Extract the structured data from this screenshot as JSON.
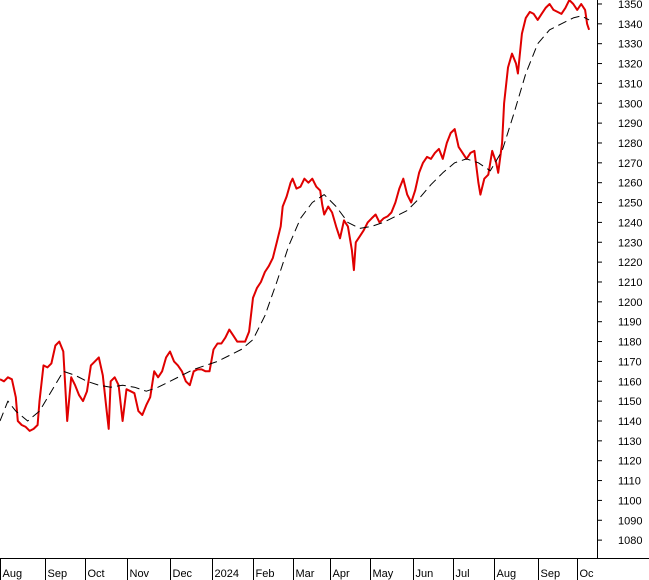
{
  "chart_data": {
    "type": "line",
    "title": "",
    "xlabel": "",
    "ylabel": "",
    "ylim": [
      1071,
      1352
    ],
    "y_axis_position": "right",
    "grid": false,
    "legend": "none",
    "y_ticks": [
      1080,
      1090,
      1100,
      1110,
      1120,
      1130,
      1140,
      1150,
      1160,
      1170,
      1180,
      1190,
      1200,
      1210,
      1220,
      1230,
      1240,
      1250,
      1260,
      1270,
      1280,
      1290,
      1300,
      1310,
      1320,
      1330,
      1340,
      1350
    ],
    "x_tick_labels": [
      "Aug",
      "Sep",
      "Oct",
      "Nov",
      "Dec",
      "2024",
      "Feb",
      "Mar",
      "Apr",
      "May",
      "Jun",
      "Jul",
      "Aug",
      "Sep",
      "Oc"
    ],
    "x_tick_index": [
      0,
      23,
      43,
      64,
      86,
      107,
      128,
      148,
      167,
      187,
      209,
      229,
      250,
      272,
      292
    ],
    "x_range": [
      0,
      302
    ],
    "series": [
      {
        "color": "#e00000",
        "style": "solid",
        "points": [
          [
            0,
            1161
          ],
          [
            2,
            1160
          ],
          [
            4,
            1162
          ],
          [
            6,
            1161
          ],
          [
            8,
            1152
          ],
          [
            9,
            1140
          ],
          [
            11,
            1138
          ],
          [
            13,
            1137
          ],
          [
            15,
            1135
          ],
          [
            17,
            1136
          ],
          [
            19,
            1138
          ],
          [
            20,
            1150
          ],
          [
            22,
            1168
          ],
          [
            24,
            1167
          ],
          [
            26,
            1169
          ],
          [
            28,
            1178
          ],
          [
            30,
            1180
          ],
          [
            32,
            1175
          ],
          [
            34,
            1140
          ],
          [
            36,
            1162
          ],
          [
            38,
            1158
          ],
          [
            40,
            1153
          ],
          [
            42,
            1150
          ],
          [
            44,
            1155
          ],
          [
            46,
            1168
          ],
          [
            48,
            1170
          ],
          [
            50,
            1172
          ],
          [
            52,
            1163
          ],
          [
            54,
            1145
          ],
          [
            55,
            1136
          ],
          [
            56,
            1160
          ],
          [
            58,
            1162
          ],
          [
            60,
            1158
          ],
          [
            62,
            1140
          ],
          [
            64,
            1156
          ],
          [
            66,
            1155
          ],
          [
            68,
            1154
          ],
          [
            70,
            1145
          ],
          [
            72,
            1143
          ],
          [
            74,
            1148
          ],
          [
            76,
            1152
          ],
          [
            78,
            1165
          ],
          [
            80,
            1162
          ],
          [
            82,
            1165
          ],
          [
            84,
            1172
          ],
          [
            86,
            1175
          ],
          [
            88,
            1170
          ],
          [
            90,
            1168
          ],
          [
            92,
            1165
          ],
          [
            94,
            1160
          ],
          [
            96,
            1158
          ],
          [
            98,
            1165
          ],
          [
            100,
            1166
          ],
          [
            102,
            1166
          ],
          [
            104,
            1165
          ],
          [
            106,
            1165
          ],
          [
            108,
            1176
          ],
          [
            110,
            1179
          ],
          [
            112,
            1179
          ],
          [
            114,
            1182
          ],
          [
            116,
            1186
          ],
          [
            118,
            1183
          ],
          [
            120,
            1180
          ],
          [
            122,
            1180
          ],
          [
            124,
            1180
          ],
          [
            126,
            1185
          ],
          [
            128,
            1202
          ],
          [
            130,
            1207
          ],
          [
            132,
            1210
          ],
          [
            134,
            1215
          ],
          [
            136,
            1218
          ],
          [
            138,
            1222
          ],
          [
            140,
            1230
          ],
          [
            142,
            1238
          ],
          [
            143,
            1248
          ],
          [
            145,
            1253
          ],
          [
            147,
            1260
          ],
          [
            148,
            1262
          ],
          [
            150,
            1257
          ],
          [
            152,
            1258
          ],
          [
            154,
            1262
          ],
          [
            156,
            1260
          ],
          [
            158,
            1262
          ],
          [
            160,
            1258
          ],
          [
            162,
            1256
          ],
          [
            163,
            1249
          ],
          [
            164,
            1244
          ],
          [
            166,
            1248
          ],
          [
            168,
            1245
          ],
          [
            170,
            1238
          ],
          [
            172,
            1232
          ],
          [
            174,
            1241
          ],
          [
            176,
            1238
          ],
          [
            178,
            1226
          ],
          [
            179,
            1216
          ],
          [
            180,
            1230
          ],
          [
            182,
            1233
          ],
          [
            184,
            1236
          ],
          [
            186,
            1240
          ],
          [
            188,
            1242
          ],
          [
            190,
            1244
          ],
          [
            192,
            1240
          ],
          [
            194,
            1242
          ],
          [
            196,
            1243
          ],
          [
            198,
            1245
          ],
          [
            200,
            1250
          ],
          [
            202,
            1257
          ],
          [
            204,
            1262
          ],
          [
            206,
            1254
          ],
          [
            208,
            1250
          ],
          [
            210,
            1256
          ],
          [
            212,
            1265
          ],
          [
            214,
            1270
          ],
          [
            216,
            1273
          ],
          [
            218,
            1272
          ],
          [
            220,
            1275
          ],
          [
            222,
            1277
          ],
          [
            224,
            1272
          ],
          [
            226,
            1280
          ],
          [
            228,
            1285
          ],
          [
            230,
            1287
          ],
          [
            232,
            1278
          ],
          [
            234,
            1275
          ],
          [
            236,
            1272
          ],
          [
            238,
            1275
          ],
          [
            240,
            1276
          ],
          [
            242,
            1260
          ],
          [
            243,
            1254
          ],
          [
            245,
            1262
          ],
          [
            247,
            1264
          ],
          [
            249,
            1276
          ],
          [
            251,
            1270
          ],
          [
            252,
            1265
          ],
          [
            254,
            1280
          ],
          [
            255,
            1300
          ],
          [
            257,
            1318
          ],
          [
            259,
            1325
          ],
          [
            261,
            1320
          ],
          [
            262,
            1315
          ],
          [
            264,
            1335
          ],
          [
            266,
            1343
          ],
          [
            268,
            1346
          ],
          [
            270,
            1345
          ],
          [
            272,
            1342
          ],
          [
            274,
            1345
          ],
          [
            276,
            1348
          ],
          [
            278,
            1350
          ],
          [
            280,
            1347
          ],
          [
            282,
            1346
          ],
          [
            284,
            1345
          ],
          [
            286,
            1348
          ],
          [
            288,
            1352
          ],
          [
            290,
            1350
          ],
          [
            292,
            1347
          ],
          [
            294,
            1350
          ],
          [
            296,
            1347
          ],
          [
            297,
            1340
          ],
          [
            298,
            1337
          ]
        ]
      },
      {
        "color": "#000000",
        "style": "dashed",
        "points": [
          [
            0,
            1140
          ],
          [
            4,
            1150
          ],
          [
            8,
            1145
          ],
          [
            14,
            1140
          ],
          [
            20,
            1145
          ],
          [
            26,
            1155
          ],
          [
            32,
            1165
          ],
          [
            38,
            1163
          ],
          [
            44,
            1160
          ],
          [
            50,
            1158
          ],
          [
            56,
            1157
          ],
          [
            62,
            1158
          ],
          [
            68,
            1157
          ],
          [
            74,
            1155
          ],
          [
            80,
            1157
          ],
          [
            86,
            1160
          ],
          [
            92,
            1163
          ],
          [
            98,
            1166
          ],
          [
            104,
            1168
          ],
          [
            110,
            1170
          ],
          [
            116,
            1173
          ],
          [
            122,
            1176
          ],
          [
            128,
            1181
          ],
          [
            134,
            1193
          ],
          [
            140,
            1210
          ],
          [
            146,
            1228
          ],
          [
            152,
            1242
          ],
          [
            158,
            1250
          ],
          [
            164,
            1254
          ],
          [
            170,
            1248
          ],
          [
            176,
            1240
          ],
          [
            182,
            1237
          ],
          [
            188,
            1238
          ],
          [
            194,
            1240
          ],
          [
            200,
            1243
          ],
          [
            206,
            1246
          ],
          [
            212,
            1252
          ],
          [
            218,
            1259
          ],
          [
            224,
            1265
          ],
          [
            230,
            1270
          ],
          [
            236,
            1272
          ],
          [
            242,
            1270
          ],
          [
            248,
            1266
          ],
          [
            254,
            1276
          ],
          [
            260,
            1295
          ],
          [
            266,
            1315
          ],
          [
            272,
            1330
          ],
          [
            278,
            1337
          ],
          [
            284,
            1340
          ],
          [
            290,
            1343
          ],
          [
            294,
            1344
          ],
          [
            298,
            1342
          ]
        ]
      }
    ]
  }
}
